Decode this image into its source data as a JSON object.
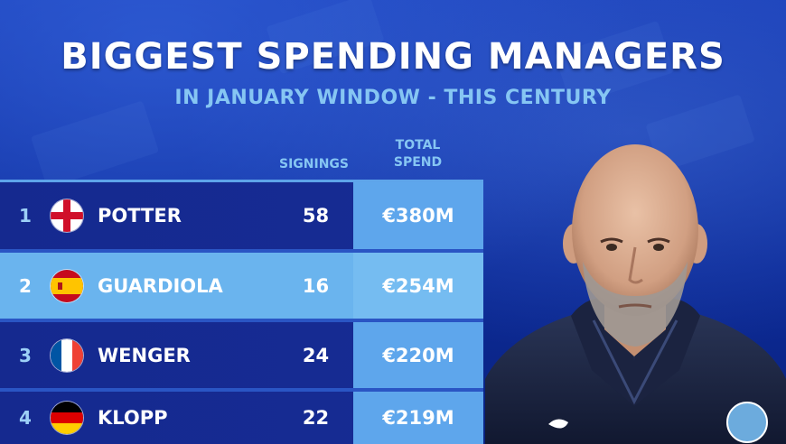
{
  "title": "BIGGEST SPENDING MANAGERS",
  "subtitle": "IN JANUARY WINDOW - THIS CENTURY",
  "columns": {
    "signings": "SIGNINGS",
    "total_spend_line1": "TOTAL",
    "total_spend_line2": "SPEND"
  },
  "rows": [
    {
      "rank": "1",
      "flag": "england-flag",
      "name": "POTTER",
      "signings": "58",
      "spend": "€380M"
    },
    {
      "rank": "2",
      "flag": "spain-flag",
      "name": "GUARDIOLA",
      "signings": "16",
      "spend": "€254M"
    },
    {
      "rank": "3",
      "flag": "france-flag",
      "name": "WENGER",
      "signings": "24",
      "spend": "€220M"
    },
    {
      "rank": "4",
      "flag": "germany-flag",
      "name": "KLOPP",
      "signings": "22",
      "spend": "€219M"
    }
  ],
  "colors": {
    "background": "#0c2a98",
    "accent_light": "#6ab4ee",
    "accent_text": "#86c6f3",
    "row_dark": "#162c94"
  }
}
